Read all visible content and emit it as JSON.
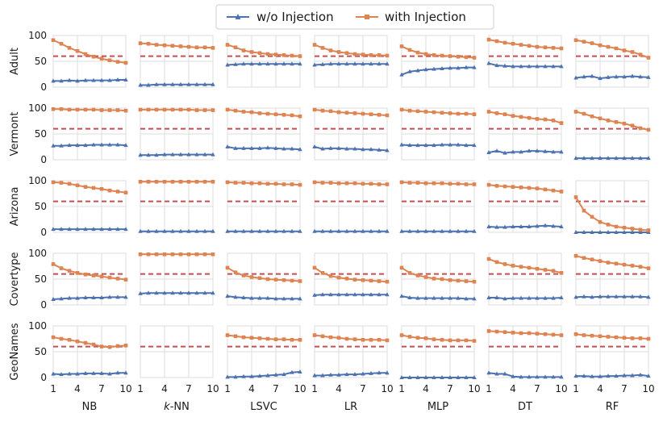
{
  "chart_data": {
    "type": "line",
    "title": "",
    "x": [
      1,
      2,
      3,
      4,
      5,
      6,
      7,
      8,
      9,
      10
    ],
    "xticks": [
      "1",
      "4",
      "7",
      "10"
    ],
    "yticks": [
      "0",
      "50",
      "100"
    ],
    "ylim": [
      0,
      100
    ],
    "threshold": 60,
    "colors": {
      "without": "#4c72b0",
      "with": "#dd8452",
      "threshold": "#c44e52"
    },
    "legend": {
      "position": "top-center",
      "without": "w/o Injection",
      "with": "with Injection"
    },
    "models": [
      {
        "key": "NB",
        "label": "NB"
      },
      {
        "key": "kNN",
        "label_italic": "k",
        "label_rest": "-NN"
      },
      {
        "key": "LSVC",
        "label": "LSVC"
      },
      {
        "key": "LR",
        "label": "LR"
      },
      {
        "key": "MLP",
        "label": "MLP"
      },
      {
        "key": "DT",
        "label": "DT"
      },
      {
        "key": "RF",
        "label": "RF"
      }
    ],
    "datasets": [
      {
        "label": "Adult",
        "panels": [
          {
            "without": [
              12,
              12,
              13,
              12,
              13,
              13,
              13,
              13,
              14,
              14
            ],
            "with": [
              91,
              84,
              76,
              70,
              64,
              59,
              55,
              52,
              49,
              47
            ]
          },
          {
            "without": [
              4,
              4,
              5,
              5,
              5,
              5,
              5,
              5,
              5,
              5
            ],
            "with": [
              85,
              84,
              82,
              81,
              80,
              79,
              78,
              77,
              77,
              76
            ]
          },
          {
            "without": [
              43,
              44,
              45,
              45,
              45,
              45,
              45,
              45,
              45,
              45
            ],
            "with": [
              82,
              77,
              71,
              68,
              66,
              64,
              63,
              62,
              61,
              60
            ]
          },
          {
            "without": [
              43,
              44,
              45,
              45,
              45,
              45,
              45,
              45,
              45,
              45
            ],
            "with": [
              82,
              76,
              71,
              68,
              66,
              64,
              63,
              62,
              62,
              61
            ]
          },
          {
            "without": [
              24,
              30,
              32,
              34,
              35,
              36,
              37,
              37,
              38,
              38
            ],
            "with": [
              79,
              72,
              67,
              64,
              62,
              61,
              60,
              59,
              58,
              57
            ]
          },
          {
            "without": [
              46,
              42,
              41,
              40,
              40,
              40,
              40,
              40,
              40,
              40
            ],
            "with": [
              92,
              89,
              86,
              84,
              82,
              80,
              78,
              77,
              76,
              75
            ]
          },
          {
            "without": [
              18,
              20,
              21,
              17,
              19,
              20,
              20,
              21,
              20,
              19
            ],
            "with": [
              91,
              88,
              85,
              81,
              78,
              75,
              71,
              68,
              63,
              57
            ]
          }
        ]
      },
      {
        "label": "Vermont",
        "panels": [
          {
            "without": [
              27,
              27,
              28,
              28,
              28,
              29,
              29,
              29,
              29,
              28
            ],
            "with": [
              98,
              98,
              97,
              97,
              97,
              97,
              96,
              96,
              96,
              95
            ]
          },
          {
            "without": [
              9,
              9,
              9,
              10,
              10,
              10,
              10,
              10,
              10,
              10
            ],
            "with": [
              97,
              97,
              97,
              97,
              97,
              97,
              97,
              96,
              96,
              96
            ]
          },
          {
            "without": [
              25,
              22,
              22,
              22,
              22,
              23,
              22,
              21,
              21,
              20
            ],
            "with": [
              97,
              95,
              93,
              92,
              90,
              89,
              88,
              87,
              86,
              84
            ]
          },
          {
            "without": [
              25,
              21,
              22,
              22,
              21,
              21,
              20,
              20,
              19,
              18
            ],
            "with": [
              97,
              95,
              94,
              92,
              91,
              90,
              89,
              88,
              87,
              86
            ]
          },
          {
            "without": [
              29,
              28,
              28,
              28,
              28,
              29,
              29,
              29,
              28,
              28
            ],
            "with": [
              97,
              95,
              94,
              93,
              92,
              91,
              90,
              89,
              89,
              88
            ]
          },
          {
            "without": [
              14,
              17,
              13,
              15,
              15,
              17,
              17,
              16,
              15,
              15
            ],
            "with": [
              93,
              90,
              88,
              85,
              83,
              81,
              79,
              78,
              76,
              71
            ]
          },
          {
            "without": [
              3,
              3,
              3,
              3,
              3,
              3,
              3,
              3,
              3,
              3
            ],
            "with": [
              93,
              89,
              84,
              80,
              76,
              73,
              70,
              66,
              61,
              58
            ]
          }
        ]
      },
      {
        "label": "Arizona",
        "panels": [
          {
            "without": [
              6,
              6,
              6,
              6,
              6,
              6,
              6,
              6,
              6,
              6
            ],
            "with": [
              97,
              96,
              94,
              91,
              88,
              86,
              84,
              81,
              79,
              77
            ]
          },
          {
            "without": [
              2,
              2,
              2,
              2,
              2,
              2,
              2,
              2,
              2,
              2
            ],
            "with": [
              98,
              98,
              98,
              98,
              98,
              98,
              98,
              98,
              98,
              98
            ]
          },
          {
            "without": [
              2,
              2,
              2,
              2,
              2,
              2,
              2,
              2,
              2,
              2
            ],
            "with": [
              97,
              96,
              96,
              95,
              95,
              94,
              94,
              93,
              93,
              92
            ]
          },
          {
            "without": [
              2,
              2,
              2,
              2,
              2,
              2,
              2,
              2,
              2,
              2
            ],
            "with": [
              97,
              96,
              96,
              95,
              95,
              95,
              94,
              94,
              93,
              93
            ]
          },
          {
            "without": [
              2,
              2,
              2,
              2,
              2,
              2,
              2,
              2,
              2,
              2
            ],
            "with": [
              97,
              96,
              96,
              95,
              95,
              95,
              94,
              94,
              93,
              93
            ]
          },
          {
            "without": [
              11,
              10,
              10,
              11,
              11,
              11,
              12,
              13,
              12,
              11
            ],
            "with": [
              92,
              90,
              89,
              88,
              87,
              86,
              85,
              83,
              81,
              79
            ]
          },
          {
            "without": [
              0,
              0,
              0,
              0,
              0,
              0,
              0,
              0,
              0,
              0
            ],
            "with": [
              68,
              42,
              30,
              20,
              15,
              11,
              9,
              7,
              5,
              4
            ]
          }
        ]
      },
      {
        "label": "Covertype",
        "panels": [
          {
            "without": [
              11,
              12,
              13,
              13,
              14,
              14,
              14,
              15,
              15,
              15
            ],
            "with": [
              79,
              71,
              66,
              62,
              59,
              57,
              55,
              53,
              51,
              49
            ]
          },
          {
            "without": [
              22,
              23,
              23,
              23,
              23,
              23,
              23,
              23,
              23,
              23
            ],
            "with": [
              98,
              98,
              98,
              98,
              98,
              98,
              98,
              98,
              98,
              98
            ]
          },
          {
            "without": [
              17,
              15,
              14,
              13,
              13,
              13,
              12,
              12,
              12,
              12
            ],
            "with": [
              72,
              63,
              57,
              54,
              52,
              50,
              49,
              48,
              47,
              46
            ]
          },
          {
            "without": [
              19,
              20,
              20,
              20,
              20,
              20,
              20,
              20,
              20,
              20
            ],
            "with": [
              72,
              62,
              56,
              53,
              51,
              49,
              48,
              47,
              46,
              45
            ]
          },
          {
            "without": [
              17,
              14,
              13,
              13,
              13,
              13,
              13,
              13,
              12,
              12
            ],
            "with": [
              72,
              62,
              57,
              54,
              51,
              50,
              48,
              47,
              46,
              45
            ]
          },
          {
            "without": [
              14,
              14,
              12,
              13,
              13,
              13,
              13,
              13,
              13,
              14
            ],
            "with": [
              89,
              83,
              79,
              76,
              74,
              72,
              70,
              68,
              66,
              62
            ]
          },
          {
            "without": [
              15,
              16,
              15,
              16,
              16,
              16,
              16,
              16,
              16,
              15
            ],
            "with": [
              95,
              91,
              88,
              85,
              82,
              80,
              78,
              76,
              74,
              71
            ]
          }
        ]
      },
      {
        "label": "GeoNames",
        "panels": [
          {
            "without": [
              7,
              6,
              7,
              7,
              8,
              8,
              8,
              7,
              9,
              9
            ],
            "with": [
              78,
              75,
              73,
              70,
              67,
              64,
              60,
              59,
              61,
              62
            ]
          },
          {
            "without": [],
            "with": []
          },
          {
            "without": [
              1,
              1,
              2,
              2,
              3,
              4,
              5,
              6,
              10,
              11
            ],
            "with": [
              82,
              80,
              78,
              77,
              76,
              75,
              74,
              74,
              73,
              73
            ]
          },
          {
            "without": [
              4,
              4,
              5,
              5,
              6,
              6,
              7,
              8,
              9,
              9
            ],
            "with": [
              82,
              80,
              78,
              77,
              75,
              74,
              73,
              73,
              73,
              72
            ]
          },
          {
            "without": [
              0,
              0,
              0,
              0,
              0,
              0,
              0,
              0,
              0,
              0
            ],
            "with": [
              82,
              79,
              77,
              76,
              74,
              73,
              72,
              72,
              72,
              71
            ]
          },
          {
            "without": [
              9,
              7,
              7,
              2,
              1,
              1,
              1,
              1,
              1,
              1
            ],
            "with": [
              90,
              89,
              88,
              87,
              86,
              86,
              85,
              84,
              83,
              82
            ]
          },
          {
            "without": [
              3,
              3,
              2,
              2,
              3,
              3,
              4,
              4,
              5,
              3
            ],
            "with": [
              84,
              82,
              81,
              80,
              79,
              78,
              77,
              76,
              76,
              75
            ]
          }
        ]
      }
    ]
  }
}
